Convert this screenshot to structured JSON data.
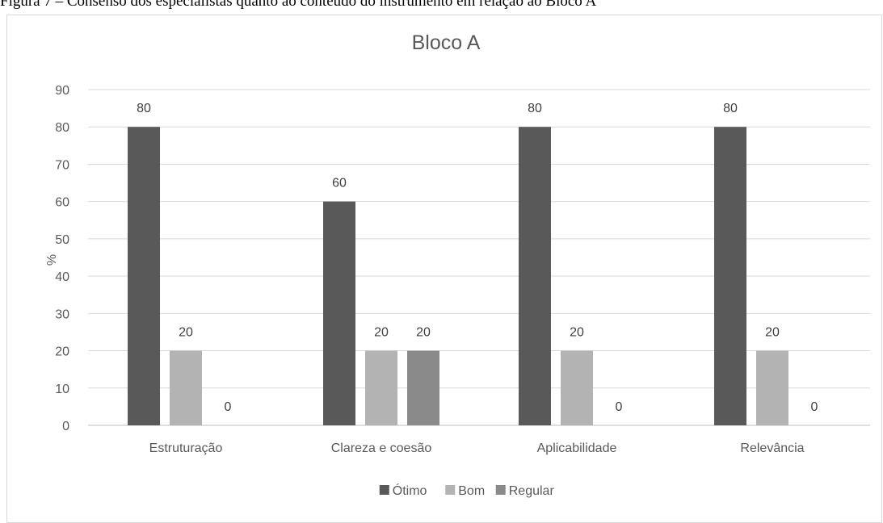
{
  "caption": "Figura 7 – Consenso dos especialistas quanto ao conteúdo do instrumento em relação ao Bloco A",
  "chart_data": {
    "type": "bar",
    "title": "Bloco A",
    "xlabel": "",
    "ylabel": "%",
    "ylim": [
      0,
      90
    ],
    "ytick_step": 10,
    "grid": true,
    "legend_position": "bottom",
    "categories": [
      "Estruturação",
      "Clareza e coesão",
      "Aplicabilidade",
      "Relevância"
    ],
    "series": [
      {
        "name": "Ótimo",
        "color": "#595959",
        "values": [
          80,
          60,
          80,
          80
        ]
      },
      {
        "name": "Bom",
        "color": "#b3b3b3",
        "values": [
          20,
          20,
          20,
          20
        ]
      },
      {
        "name": "Regular",
        "color": "#8a8a8a",
        "values": [
          0,
          20,
          0,
          0
        ]
      }
    ]
  }
}
